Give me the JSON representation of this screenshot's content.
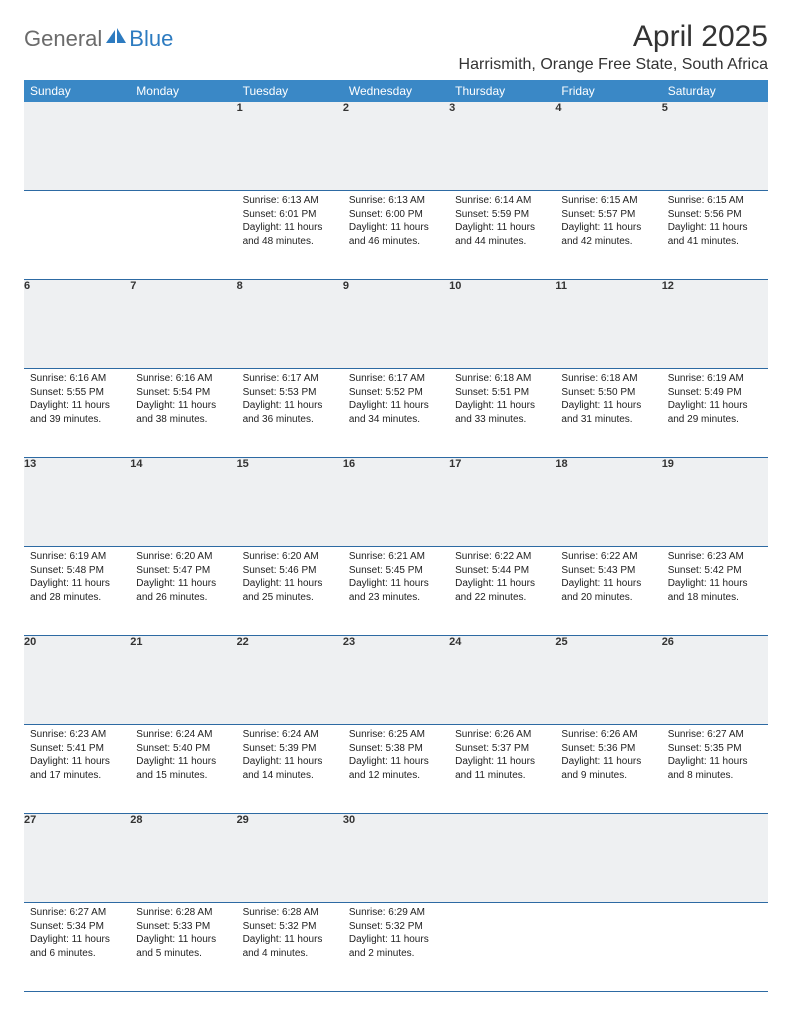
{
  "brand": {
    "part1": "General",
    "part2": "Blue"
  },
  "title": "April 2025",
  "location": "Harrismith, Orange Free State, South Africa",
  "colors": {
    "header_bg": "#3a88c6",
    "header_text": "#ffffff",
    "daynum_bg": "#eef0f2",
    "row_border": "#2d6aa3",
    "title_color": "#333333",
    "body_text": "#222222",
    "logo_gray": "#6b6b6b",
    "logo_blue": "#2d7bc0"
  },
  "day_headers": [
    "Sunday",
    "Monday",
    "Tuesday",
    "Wednesday",
    "Thursday",
    "Friday",
    "Saturday"
  ],
  "weeks": [
    [
      null,
      null,
      {
        "n": "1",
        "sunrise": "6:13 AM",
        "sunset": "6:01 PM",
        "daylight": "11 hours and 48 minutes."
      },
      {
        "n": "2",
        "sunrise": "6:13 AM",
        "sunset": "6:00 PM",
        "daylight": "11 hours and 46 minutes."
      },
      {
        "n": "3",
        "sunrise": "6:14 AM",
        "sunset": "5:59 PM",
        "daylight": "11 hours and 44 minutes."
      },
      {
        "n": "4",
        "sunrise": "6:15 AM",
        "sunset": "5:57 PM",
        "daylight": "11 hours and 42 minutes."
      },
      {
        "n": "5",
        "sunrise": "6:15 AM",
        "sunset": "5:56 PM",
        "daylight": "11 hours and 41 minutes."
      }
    ],
    [
      {
        "n": "6",
        "sunrise": "6:16 AM",
        "sunset": "5:55 PM",
        "daylight": "11 hours and 39 minutes."
      },
      {
        "n": "7",
        "sunrise": "6:16 AM",
        "sunset": "5:54 PM",
        "daylight": "11 hours and 38 minutes."
      },
      {
        "n": "8",
        "sunrise": "6:17 AM",
        "sunset": "5:53 PM",
        "daylight": "11 hours and 36 minutes."
      },
      {
        "n": "9",
        "sunrise": "6:17 AM",
        "sunset": "5:52 PM",
        "daylight": "11 hours and 34 minutes."
      },
      {
        "n": "10",
        "sunrise": "6:18 AM",
        "sunset": "5:51 PM",
        "daylight": "11 hours and 33 minutes."
      },
      {
        "n": "11",
        "sunrise": "6:18 AM",
        "sunset": "5:50 PM",
        "daylight": "11 hours and 31 minutes."
      },
      {
        "n": "12",
        "sunrise": "6:19 AM",
        "sunset": "5:49 PM",
        "daylight": "11 hours and 29 minutes."
      }
    ],
    [
      {
        "n": "13",
        "sunrise": "6:19 AM",
        "sunset": "5:48 PM",
        "daylight": "11 hours and 28 minutes."
      },
      {
        "n": "14",
        "sunrise": "6:20 AM",
        "sunset": "5:47 PM",
        "daylight": "11 hours and 26 minutes."
      },
      {
        "n": "15",
        "sunrise": "6:20 AM",
        "sunset": "5:46 PM",
        "daylight": "11 hours and 25 minutes."
      },
      {
        "n": "16",
        "sunrise": "6:21 AM",
        "sunset": "5:45 PM",
        "daylight": "11 hours and 23 minutes."
      },
      {
        "n": "17",
        "sunrise": "6:22 AM",
        "sunset": "5:44 PM",
        "daylight": "11 hours and 22 minutes."
      },
      {
        "n": "18",
        "sunrise": "6:22 AM",
        "sunset": "5:43 PM",
        "daylight": "11 hours and 20 minutes."
      },
      {
        "n": "19",
        "sunrise": "6:23 AM",
        "sunset": "5:42 PM",
        "daylight": "11 hours and 18 minutes."
      }
    ],
    [
      {
        "n": "20",
        "sunrise": "6:23 AM",
        "sunset": "5:41 PM",
        "daylight": "11 hours and 17 minutes."
      },
      {
        "n": "21",
        "sunrise": "6:24 AM",
        "sunset": "5:40 PM",
        "daylight": "11 hours and 15 minutes."
      },
      {
        "n": "22",
        "sunrise": "6:24 AM",
        "sunset": "5:39 PM",
        "daylight": "11 hours and 14 minutes."
      },
      {
        "n": "23",
        "sunrise": "6:25 AM",
        "sunset": "5:38 PM",
        "daylight": "11 hours and 12 minutes."
      },
      {
        "n": "24",
        "sunrise": "6:26 AM",
        "sunset": "5:37 PM",
        "daylight": "11 hours and 11 minutes."
      },
      {
        "n": "25",
        "sunrise": "6:26 AM",
        "sunset": "5:36 PM",
        "daylight": "11 hours and 9 minutes."
      },
      {
        "n": "26",
        "sunrise": "6:27 AM",
        "sunset": "5:35 PM",
        "daylight": "11 hours and 8 minutes."
      }
    ],
    [
      {
        "n": "27",
        "sunrise": "6:27 AM",
        "sunset": "5:34 PM",
        "daylight": "11 hours and 6 minutes."
      },
      {
        "n": "28",
        "sunrise": "6:28 AM",
        "sunset": "5:33 PM",
        "daylight": "11 hours and 5 minutes."
      },
      {
        "n": "29",
        "sunrise": "6:28 AM",
        "sunset": "5:32 PM",
        "daylight": "11 hours and 4 minutes."
      },
      {
        "n": "30",
        "sunrise": "6:29 AM",
        "sunset": "5:32 PM",
        "daylight": "11 hours and 2 minutes."
      },
      null,
      null,
      null
    ]
  ],
  "labels": {
    "sunrise": "Sunrise:",
    "sunset": "Sunset:",
    "daylight": "Daylight:"
  }
}
